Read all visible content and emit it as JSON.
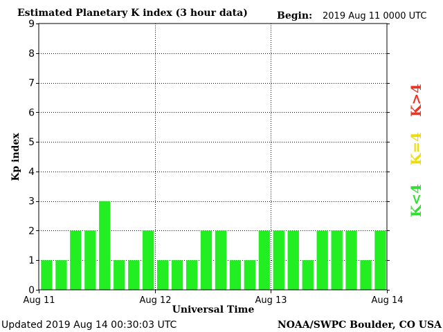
{
  "chart_data": {
    "type": "bar",
    "title": "Estimated Planetary K index (3 hour data)",
    "begin_label": "Begin:",
    "begin_value": "2019 Aug 11 0000 UTC",
    "xlabel": "Universal Time",
    "ylabel": "Kp index",
    "ylim": [
      0,
      9
    ],
    "yticks": [
      "0",
      "1",
      "2",
      "3",
      "4",
      "5",
      "6",
      "7",
      "8",
      "9"
    ],
    "xticks": [
      "Aug 11",
      "Aug 12",
      "Aug 13",
      "Aug 14"
    ],
    "values": [
      1,
      1,
      2,
      2,
      3,
      1,
      1,
      2,
      1,
      1,
      1,
      2,
      2,
      1,
      1,
      2,
      2,
      2,
      1,
      2,
      2,
      2,
      1,
      2
    ],
    "grid": true,
    "bar_color": "#22ee22",
    "legend": [
      {
        "label": "K<4",
        "color": "#33dd33"
      },
      {
        "label": "K=4",
        "color": "#eedd00"
      },
      {
        "label": "K>4",
        "color": "#ee3322"
      }
    ],
    "footer_left": "Updated 2019 Aug 14 00:30:03 UTC",
    "footer_right": "NOAA/SWPC Boulder, CO USA"
  }
}
